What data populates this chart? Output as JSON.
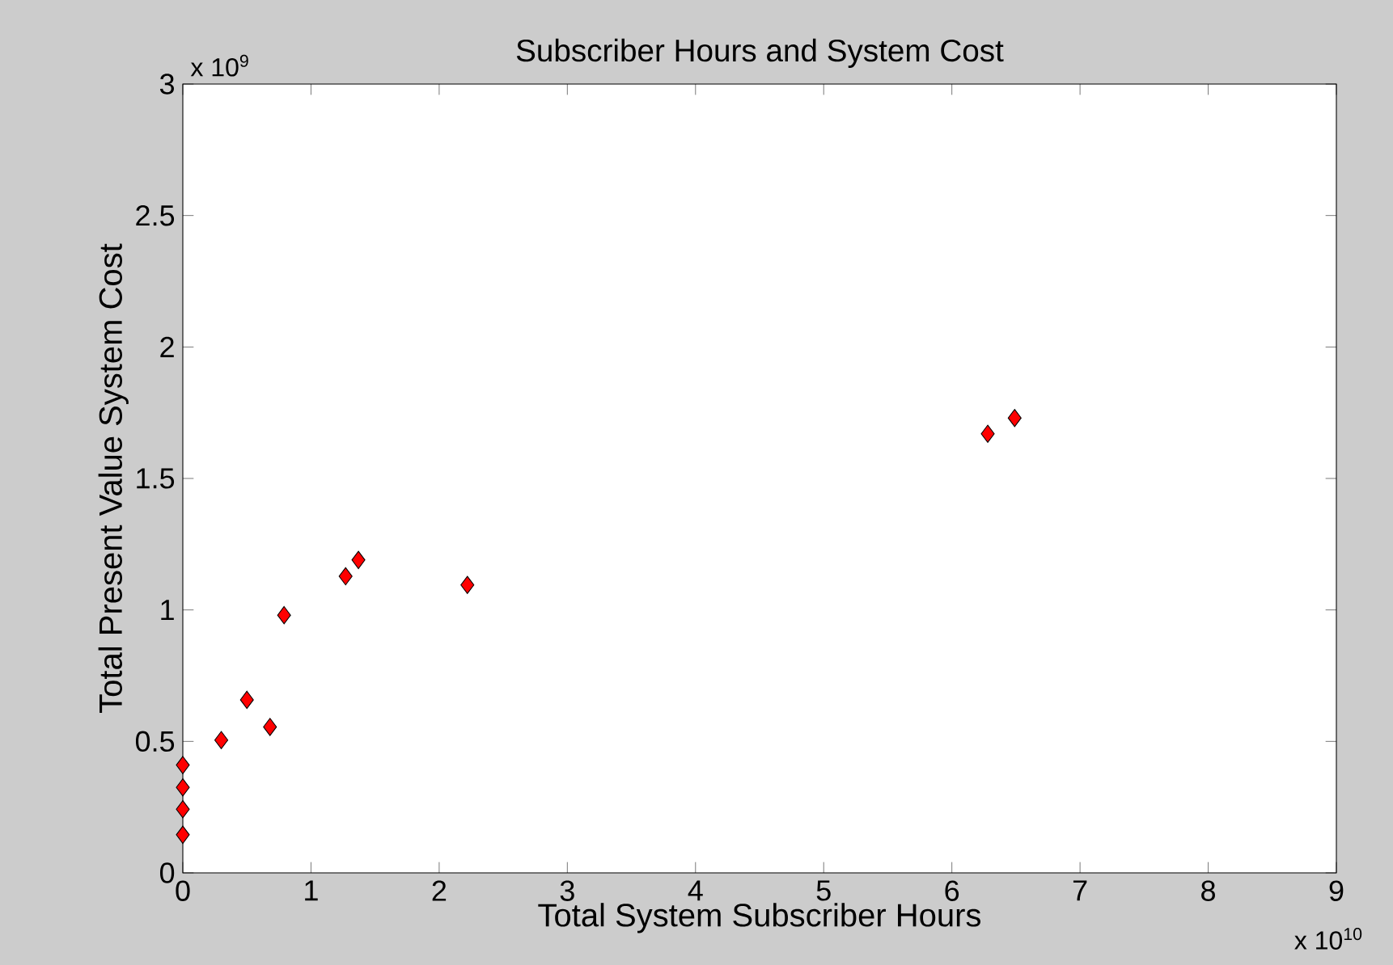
{
  "chart_data": {
    "type": "scatter",
    "title": "Subscriber Hours and System Cost",
    "xlabel": "Total System Subscriber Hours",
    "ylabel": "Total Present Value System Cost",
    "annotations": [
      "x 10$^{9}$",
      "x 10$^{10}$"
    ],
    "x": [
      0,
      0,
      0,
      0,
      0.3,
      0.5,
      0.68,
      0.79,
      1.27,
      1.37,
      2.22,
      6.28,
      6.49
    ],
    "series": [
      {
        "color": "#ff0000",
        "values": [
          0.41,
          0.325,
          0.242,
          0.145,
          0.505,
          0.658,
          0.555,
          0.98,
          1.128,
          1.19,
          1.095,
          1.67,
          1.73
        ]
      }
    ],
    "marker": "diamond",
    "xlim": [
      0,
      9
    ],
    "ylim": [
      0,
      3
    ],
    "xticks": [
      0,
      1,
      2,
      3,
      4,
      5,
      6,
      7,
      8,
      9
    ],
    "yticks": [
      0,
      0.5,
      1,
      1.5,
      2,
      2.5,
      3
    ]
  }
}
